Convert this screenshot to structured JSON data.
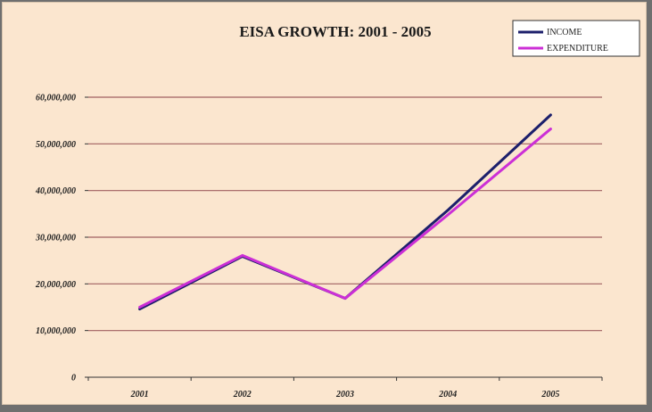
{
  "chart_data": {
    "type": "line",
    "title": "EISA GROWTH: 2001 - 2005",
    "xlabel": "",
    "ylabel": "",
    "categories": [
      "2001",
      "2002",
      "2003",
      "2004",
      "2005"
    ],
    "y_tick_labels": [
      "0",
      "10,000,000",
      "20,000,000",
      "30,000,000",
      "40,000,000",
      "50,000,000",
      "60,000,000"
    ],
    "ylim": [
      0,
      60000000
    ],
    "grid": true,
    "legend_position": "top-right",
    "series": [
      {
        "name": "INCOME",
        "color": "#1c1f6b",
        "values": [
          14600000,
          25900000,
          16900000,
          35800000,
          56200000
        ]
      },
      {
        "name": "EXPENDITURE",
        "color": "#cc2fd6",
        "values": [
          15000000,
          26100000,
          16900000,
          34800000,
          53200000
        ]
      }
    ],
    "colors": {
      "background": "#fbe6cf",
      "gridline": "#a06060"
    }
  }
}
